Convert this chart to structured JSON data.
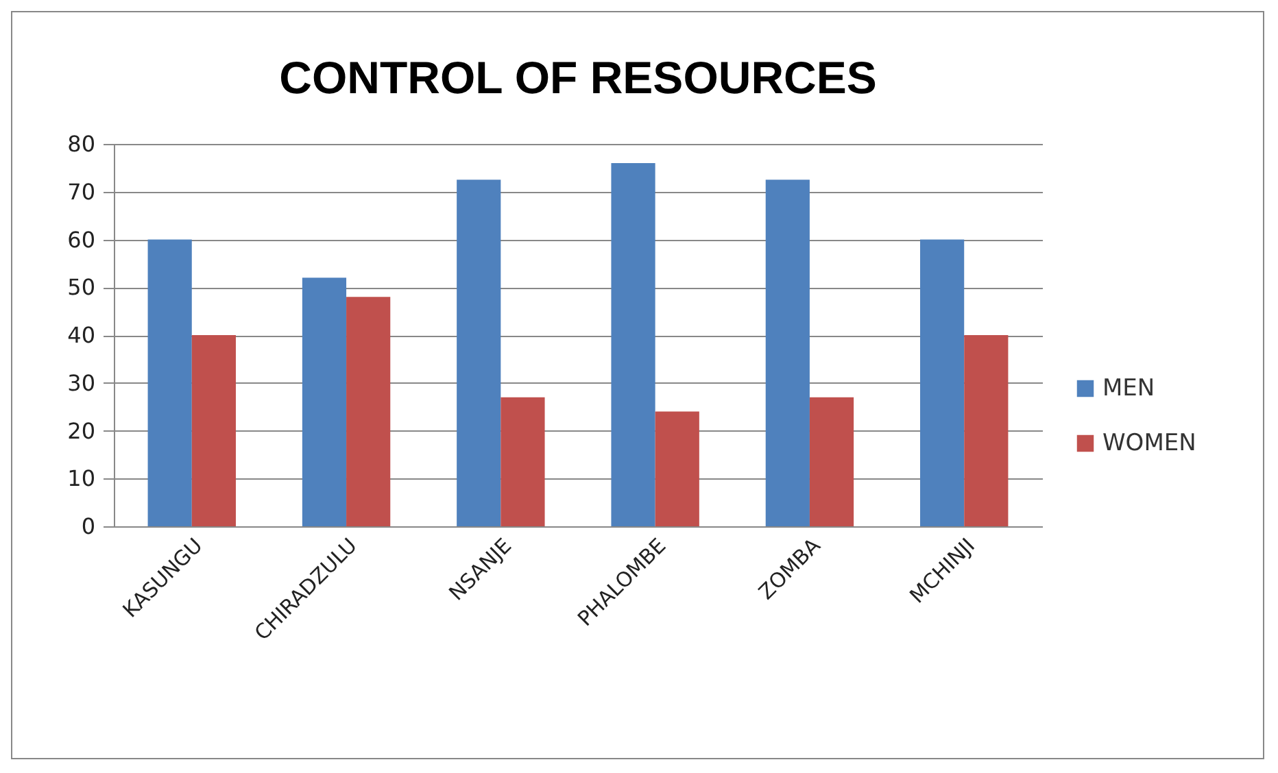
{
  "chart_data": {
    "type": "bar",
    "title": "CONTROL OF RESOURCES",
    "categories": [
      "KASUNGU",
      "CHIRADZULU",
      "NSANJE",
      "PHALOMBE",
      "ZOMBA",
      "MCHINJI"
    ],
    "series": [
      {
        "name": "MEN",
        "color": "#4f81bd",
        "values": [
          60,
          52,
          72.5,
          76,
          72.5,
          60
        ]
      },
      {
        "name": "WOMEN",
        "color": "#c0504d",
        "values": [
          40,
          48,
          27,
          24,
          27,
          40
        ]
      }
    ],
    "ylim": [
      0,
      80
    ],
    "yticks": [
      0,
      10,
      20,
      30,
      40,
      50,
      60,
      70,
      80
    ],
    "grid": "y",
    "legend": "right"
  }
}
